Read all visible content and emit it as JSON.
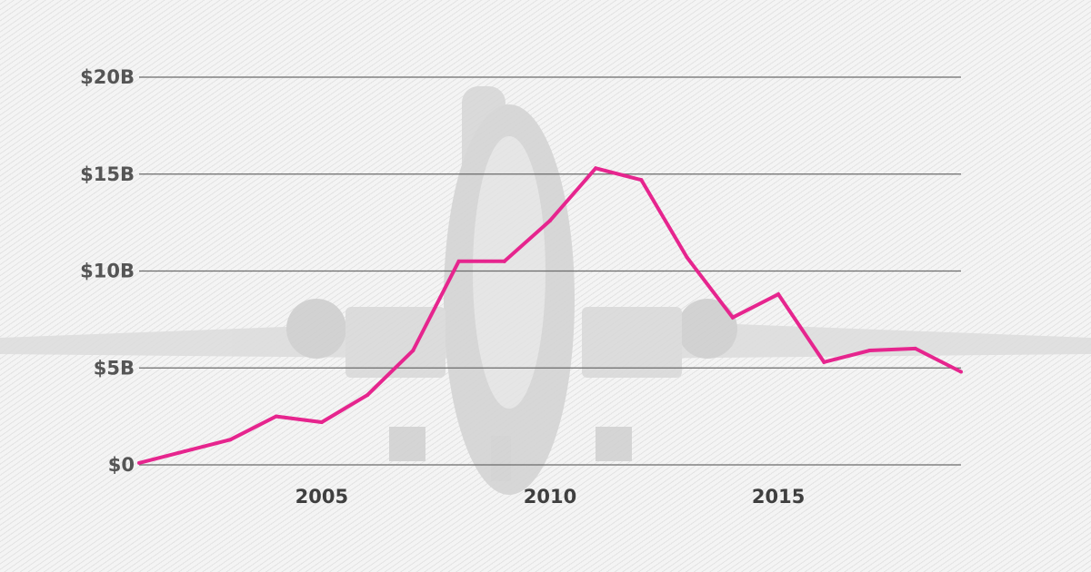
{
  "chart_data": {
    "type": "line",
    "title": "",
    "xlabel": "",
    "ylabel": "",
    "x": [
      2001,
      2002,
      2003,
      2004,
      2005,
      2006,
      2007,
      2008,
      2009,
      2010,
      2011,
      2012,
      2013,
      2014,
      2015,
      2016,
      2017,
      2018,
      2019
    ],
    "series": [
      {
        "values": [
          0.1,
          0.7,
          1.3,
          2.5,
          2.2,
          3.6,
          5.9,
          10.5,
          10.5,
          12.6,
          15.3,
          14.7,
          10.7,
          7.6,
          8.8,
          5.3,
          5.9,
          6.0,
          4.8
        ]
      }
    ],
    "xlim": [
      2001,
      2019
    ],
    "ylim": [
      0,
      20
    ],
    "x_ticks": [
      {
        "value": 2005,
        "label": "2005"
      },
      {
        "value": 2010,
        "label": "2010"
      },
      {
        "value": 2015,
        "label": "2015"
      }
    ],
    "y_ticks": [
      {
        "value": 0,
        "label": "$0"
      },
      {
        "value": 5,
        "label": "$5B"
      },
      {
        "value": 10,
        "label": "$10B"
      },
      {
        "value": 15,
        "label": "$15B"
      },
      {
        "value": 20,
        "label": "$20B"
      }
    ],
    "grid": "horizontal",
    "legend": "none"
  },
  "style": {
    "line_color": "#e6258e",
    "grid_color": "#6b6b6b",
    "background_color": "#f4f4f4",
    "illustration_color": "#d7d7d7",
    "illustration_icon": "airliner-front-icon"
  }
}
